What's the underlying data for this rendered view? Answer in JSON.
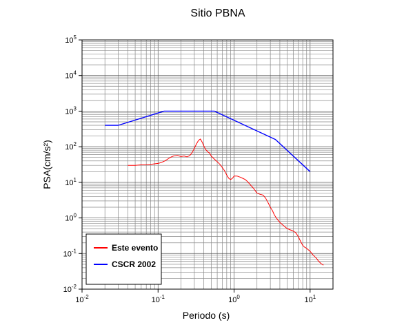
{
  "chart_data": {
    "type": "line",
    "title": "Sitio PBNA",
    "xlabel": "Periodo (s)",
    "ylabel": "PSA(cm/s²)",
    "x_scale": "log",
    "y_scale": "log",
    "xlim": [
      0.01,
      20
    ],
    "ylim": [
      0.01,
      100000
    ],
    "grid": true,
    "legend_position": "bottom-left",
    "x_ticks": [
      {
        "value": 0.01,
        "base": "10",
        "exp": "-2"
      },
      {
        "value": 0.1,
        "base": "10",
        "exp": "-1"
      },
      {
        "value": 1,
        "base": "10",
        "exp": "0"
      },
      {
        "value": 10,
        "base": "10",
        "exp": "1"
      }
    ],
    "y_ticks": [
      {
        "value": 0.01,
        "base": "10",
        "exp": "-2"
      },
      {
        "value": 0.1,
        "base": "10",
        "exp": "-1"
      },
      {
        "value": 1,
        "base": "10",
        "exp": "0"
      },
      {
        "value": 10,
        "base": "10",
        "exp": "1"
      },
      {
        "value": 100,
        "base": "10",
        "exp": "2"
      },
      {
        "value": 1000,
        "base": "10",
        "exp": "3"
      },
      {
        "value": 10000,
        "base": "10",
        "exp": "4"
      },
      {
        "value": 100000,
        "base": "10",
        "exp": "5"
      }
    ],
    "series": [
      {
        "name": "Este evento",
        "color": "#ff0000",
        "x": [
          0.04,
          0.05,
          0.06,
          0.07,
          0.08,
          0.09,
          0.1,
          0.11,
          0.12,
          0.13,
          0.14,
          0.15,
          0.16,
          0.17,
          0.18,
          0.19,
          0.2,
          0.22,
          0.24,
          0.26,
          0.28,
          0.3,
          0.32,
          0.34,
          0.36,
          0.38,
          0.4,
          0.42,
          0.45,
          0.48,
          0.5,
          0.55,
          0.6,
          0.65,
          0.7,
          0.75,
          0.8,
          0.85,
          0.9,
          0.95,
          1.0,
          1.1,
          1.2,
          1.3,
          1.4,
          1.5,
          1.6,
          1.7,
          1.8,
          1.9,
          2.0,
          2.2,
          2.4,
          2.6,
          2.8,
          3.0,
          3.2,
          3.4,
          3.6,
          3.8,
          4.0,
          4.5,
          5.0,
          5.5,
          6.0,
          6.5,
          7.0,
          7.5,
          8.0,
          8.5,
          9.0,
          10,
          11,
          12,
          13,
          14,
          15
        ],
        "y": [
          30,
          30,
          31,
          31,
          32,
          33,
          34,
          36,
          39,
          43,
          48,
          52,
          55,
          56,
          57,
          55,
          53,
          55,
          52,
          56,
          68,
          90,
          120,
          150,
          165,
          135,
          105,
          85,
          72,
          65,
          55,
          45,
          38,
          32,
          26,
          21,
          16,
          13,
          12,
          13,
          15,
          15,
          14,
          13,
          12,
          10.5,
          9,
          7.8,
          6.8,
          5.8,
          5.0,
          4.6,
          4.4,
          3.6,
          2.7,
          2.0,
          1.6,
          1.2,
          1.0,
          0.85,
          0.75,
          0.6,
          0.5,
          0.46,
          0.43,
          0.38,
          0.3,
          0.22,
          0.17,
          0.15,
          0.14,
          0.115,
          0.09,
          0.075,
          0.06,
          0.052,
          0.047
        ]
      },
      {
        "name": "CSCR 2002",
        "color": "#0000ff",
        "x": [
          0.02,
          0.03,
          0.12,
          0.55,
          3.5,
          10
        ],
        "y": [
          400,
          400,
          1000,
          1000,
          160,
          20
        ]
      }
    ]
  }
}
